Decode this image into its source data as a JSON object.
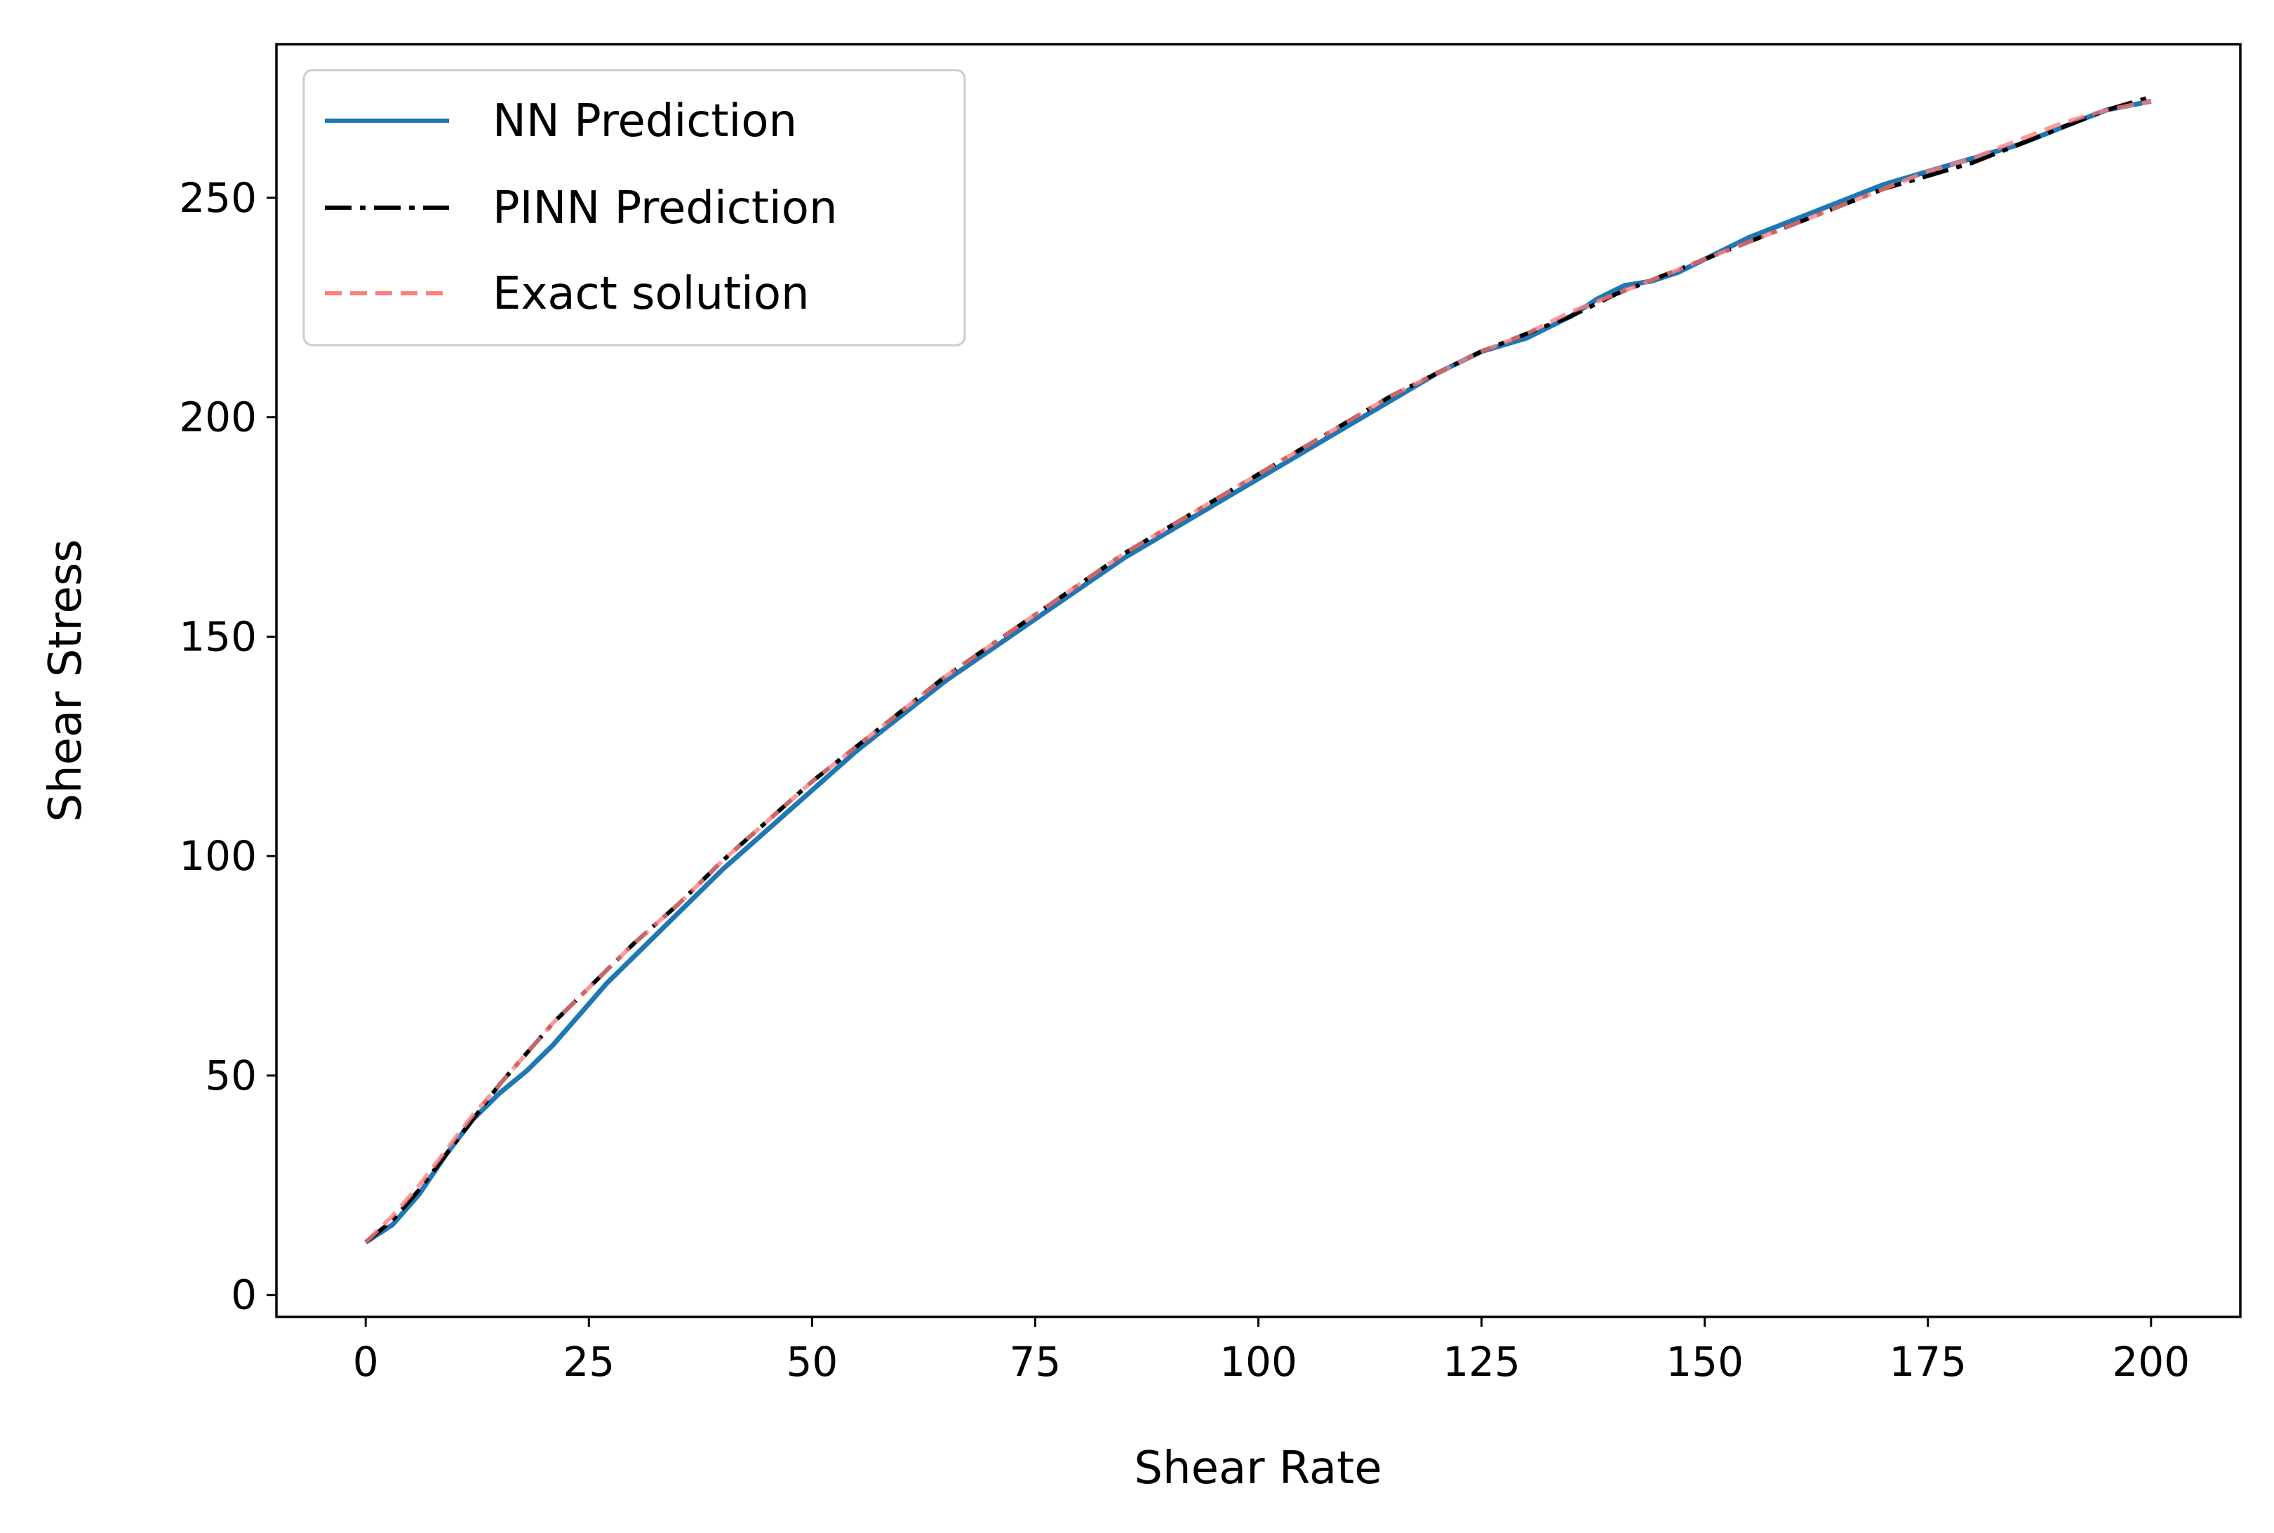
{
  "chart_data": {
    "type": "line",
    "title": "",
    "xlabel": "Shear Rate",
    "ylabel": "Shear Stress",
    "xlim": [
      -10,
      210
    ],
    "ylim": [
      -5,
      285
    ],
    "x_ticks": [
      0,
      25,
      50,
      75,
      100,
      125,
      150,
      175,
      200
    ],
    "y_ticks": [
      0,
      50,
      100,
      150,
      200,
      250
    ],
    "grid": false,
    "legend_position": "top-left",
    "series": [
      {
        "name": "NN Prediction",
        "color": "#1f77b4",
        "style": "solid",
        "x": [
          0,
          3,
          6,
          9,
          12,
          15,
          18,
          21,
          24,
          27,
          30,
          35,
          40,
          45,
          50,
          55,
          60,
          65,
          70,
          75,
          80,
          85,
          90,
          95,
          100,
          105,
          110,
          115,
          120,
          125,
          130,
          135,
          138,
          141,
          144,
          147,
          150,
          155,
          160,
          165,
          170,
          175,
          180,
          185,
          190,
          195,
          200
        ],
        "y": [
          12,
          16,
          23,
          32,
          40,
          46,
          51,
          57,
          64,
          71,
          77,
          87,
          97,
          106,
          115,
          124,
          132,
          140,
          147,
          154,
          161,
          168,
          174,
          180,
          186,
          192,
          198,
          204,
          210,
          215,
          218,
          223,
          227,
          230,
          231,
          233,
          236,
          241,
          245,
          249,
          253,
          256,
          259,
          262,
          266,
          270,
          272
        ]
      },
      {
        "name": "PINN Prediction",
        "color": "#000000",
        "style": "dashdot",
        "x": [
          0,
          3,
          6,
          9,
          12,
          15,
          18,
          21,
          24,
          27,
          30,
          35,
          40,
          45,
          50,
          55,
          60,
          65,
          70,
          75,
          80,
          85,
          90,
          95,
          100,
          105,
          110,
          115,
          120,
          125,
          130,
          135,
          140,
          145,
          150,
          155,
          160,
          165,
          170,
          175,
          180,
          185,
          190,
          195,
          200
        ],
        "y": [
          12,
          17,
          24,
          32,
          40,
          48,
          55,
          62,
          68,
          74,
          80,
          89,
          99,
          108,
          117,
          125,
          133,
          141,
          148,
          155,
          162,
          169,
          175,
          181,
          187,
          193,
          199,
          205,
          210,
          215,
          219,
          223,
          228,
          232,
          236,
          240,
          244,
          248,
          252,
          255,
          258,
          262,
          266,
          270,
          273
        ]
      },
      {
        "name": "Exact solution",
        "color": "#ff7f7f",
        "style": "dashed",
        "x": [
          0,
          3,
          6,
          9,
          12,
          15,
          18,
          21,
          24,
          27,
          30,
          35,
          40,
          45,
          50,
          55,
          60,
          65,
          70,
          75,
          80,
          85,
          90,
          95,
          100,
          105,
          110,
          115,
          120,
          125,
          130,
          135,
          140,
          145,
          150,
          155,
          160,
          165,
          170,
          175,
          180,
          185,
          190,
          195,
          200
        ],
        "y": [
          12,
          18,
          25,
          33,
          41,
          48,
          55,
          62,
          68,
          74,
          80,
          89,
          99,
          108,
          117,
          125,
          133,
          141,
          148,
          155,
          162,
          169,
          175,
          181,
          187,
          193,
          199,
          205,
          210,
          215,
          219,
          224,
          228,
          232,
          236,
          240,
          244,
          248,
          252,
          256,
          259,
          263,
          267,
          270,
          272
        ]
      }
    ]
  }
}
